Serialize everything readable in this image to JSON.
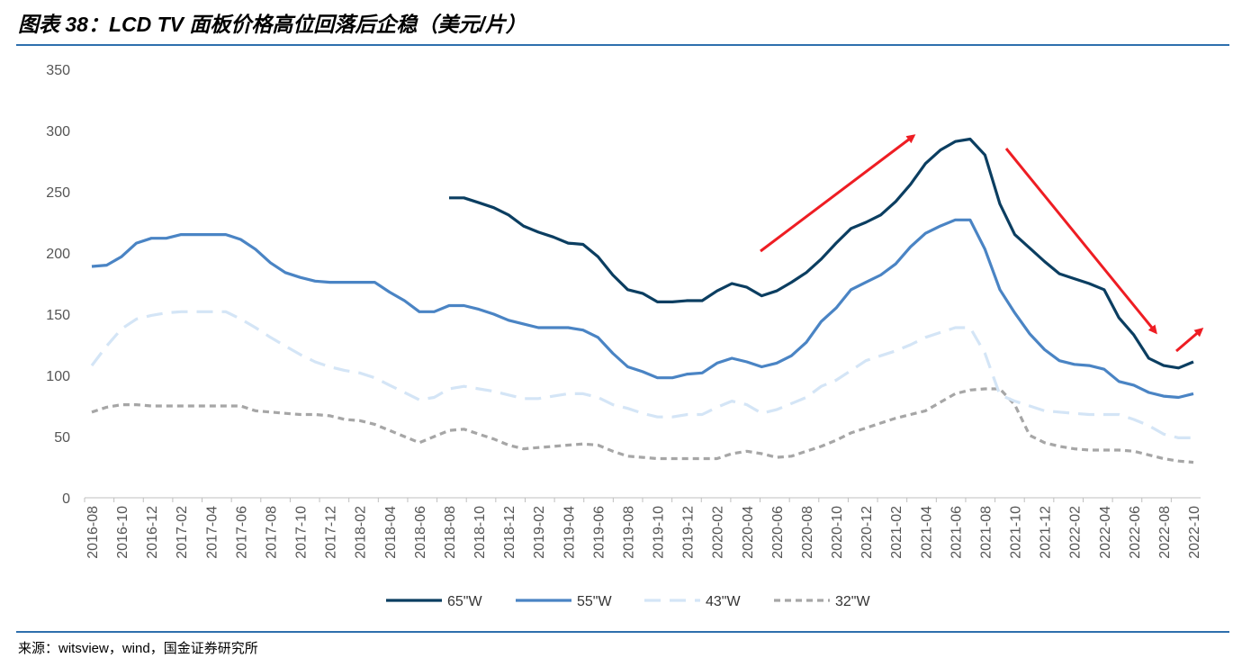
{
  "figure": {
    "title": "图表 38：LCD TV 面板价格高位回落后企稳（美元/片）",
    "source": "来源：witsview，wind，国金证券研究所"
  },
  "colors": {
    "rule": "#2e6fad",
    "series": [
      "#0b3e61",
      "#4a84c4",
      "#d4e5f6",
      "#a6a6a6"
    ],
    "arrow": "#ee1d23"
  },
  "chart_data": {
    "type": "line",
    "ylim": [
      0,
      350
    ],
    "yticks": [
      0,
      50,
      100,
      150,
      200,
      250,
      300,
      350
    ],
    "x": [
      "2016-08",
      "2016-09",
      "2016-10",
      "2016-11",
      "2016-12",
      "2017-01",
      "2017-02",
      "2017-03",
      "2017-04",
      "2017-05",
      "2017-06",
      "2017-07",
      "2017-08",
      "2017-09",
      "2017-10",
      "2017-11",
      "2017-12",
      "2018-01",
      "2018-02",
      "2018-03",
      "2018-04",
      "2018-05",
      "2018-06",
      "2018-07",
      "2018-08",
      "2018-09",
      "2018-10",
      "2018-11",
      "2018-12",
      "2019-01",
      "2019-02",
      "2019-03",
      "2019-04",
      "2019-05",
      "2019-06",
      "2019-07",
      "2019-08",
      "2019-09",
      "2019-10",
      "2019-11",
      "2019-12",
      "2020-01",
      "2020-02",
      "2020-03",
      "2020-04",
      "2020-05",
      "2020-06",
      "2020-07",
      "2020-08",
      "2020-09",
      "2020-10",
      "2020-11",
      "2020-12",
      "2021-01",
      "2021-02",
      "2021-03",
      "2021-04",
      "2021-05",
      "2021-06",
      "2021-07",
      "2021-08",
      "2021-09",
      "2021-10",
      "2021-11",
      "2021-12",
      "2022-01",
      "2022-02",
      "2022-03",
      "2022-04",
      "2022-05",
      "2022-06",
      "2022-07",
      "2022-08",
      "2022-09",
      "2022-10"
    ],
    "xtick_labels": [
      "2016-08",
      "2016-10",
      "2016-12",
      "2017-02",
      "2017-04",
      "2017-06",
      "2017-08",
      "2017-10",
      "2017-12",
      "2018-02",
      "2018-04",
      "2018-06",
      "2018-08",
      "2018-10",
      "2018-12",
      "2019-02",
      "2019-04",
      "2019-06",
      "2019-08",
      "2019-10",
      "2019-12",
      "2020-02",
      "2020-04",
      "2020-06",
      "2020-08",
      "2020-10",
      "2020-12",
      "2021-02",
      "2021-04",
      "2021-06",
      "2021-08",
      "2021-10",
      "2021-12",
      "2022-02",
      "2022-04",
      "2022-06",
      "2022-08",
      "2022-10"
    ],
    "series": [
      {
        "name": "65\"W",
        "style": "solid",
        "values": [
          null,
          null,
          null,
          null,
          null,
          null,
          null,
          null,
          null,
          null,
          null,
          null,
          null,
          null,
          null,
          null,
          null,
          null,
          null,
          null,
          null,
          null,
          null,
          null,
          245,
          245,
          241,
          237,
          231,
          222,
          217,
          213,
          208,
          207,
          197,
          182,
          170,
          167,
          160,
          160,
          161,
          161,
          169,
          175,
          172,
          165,
          169,
          176,
          184,
          195,
          208,
          220,
          225,
          231,
          242,
          256,
          273,
          284,
          291,
          293,
          280,
          240,
          215,
          204,
          193,
          183,
          179,
          175,
          170,
          147,
          133,
          114,
          108,
          106,
          111
        ]
      },
      {
        "name": "55\"W",
        "style": "solid",
        "values": [
          189,
          190,
          197,
          208,
          212,
          212,
          215,
          215,
          215,
          215,
          211,
          203,
          192,
          184,
          180,
          177,
          176,
          176,
          176,
          176,
          168,
          161,
          152,
          152,
          157,
          157,
          154,
          150,
          145,
          142,
          139,
          139,
          139,
          137,
          131,
          118,
          107,
          103,
          98,
          98,
          101,
          102,
          110,
          114,
          111,
          107,
          110,
          116,
          127,
          144,
          155,
          170,
          176,
          182,
          191,
          205,
          216,
          222,
          227,
          227,
          203,
          170,
          151,
          134,
          121,
          112,
          109,
          108,
          105,
          95,
          92,
          86,
          83,
          82,
          85
        ]
      },
      {
        "name": "43\"W",
        "style": "dash",
        "values": [
          108,
          124,
          138,
          146,
          149,
          151,
          152,
          152,
          152,
          152,
          146,
          139,
          131,
          124,
          117,
          111,
          107,
          104,
          102,
          98,
          92,
          86,
          80,
          82,
          89,
          91,
          89,
          87,
          84,
          81,
          81,
          83,
          85,
          85,
          82,
          76,
          73,
          69,
          66,
          66,
          68,
          68,
          74,
          79,
          76,
          69,
          72,
          77,
          82,
          91,
          96,
          104,
          112,
          116,
          120,
          125,
          131,
          135,
          139,
          139,
          118,
          84,
          79,
          75,
          71,
          70,
          69,
          68,
          68,
          68,
          64,
          59,
          52,
          49,
          49
        ]
      },
      {
        "name": "32\"W",
        "style": "dash",
        "values": [
          70,
          74,
          76,
          76,
          75,
          75,
          75,
          75,
          75,
          75,
          75,
          71,
          70,
          69,
          68,
          68,
          67,
          64,
          63,
          60,
          55,
          50,
          45,
          50,
          55,
          56,
          52,
          48,
          43,
          40,
          41,
          42,
          43,
          44,
          43,
          38,
          34,
          33,
          32,
          32,
          32,
          32,
          32,
          36,
          38,
          36,
          33,
          34,
          38,
          42,
          47,
          53,
          57,
          61,
          65,
          68,
          71,
          78,
          85,
          88,
          89,
          89,
          76,
          51,
          45,
          42,
          40,
          39,
          39,
          39,
          38,
          35,
          32,
          30,
          29
        ]
      }
    ]
  }
}
